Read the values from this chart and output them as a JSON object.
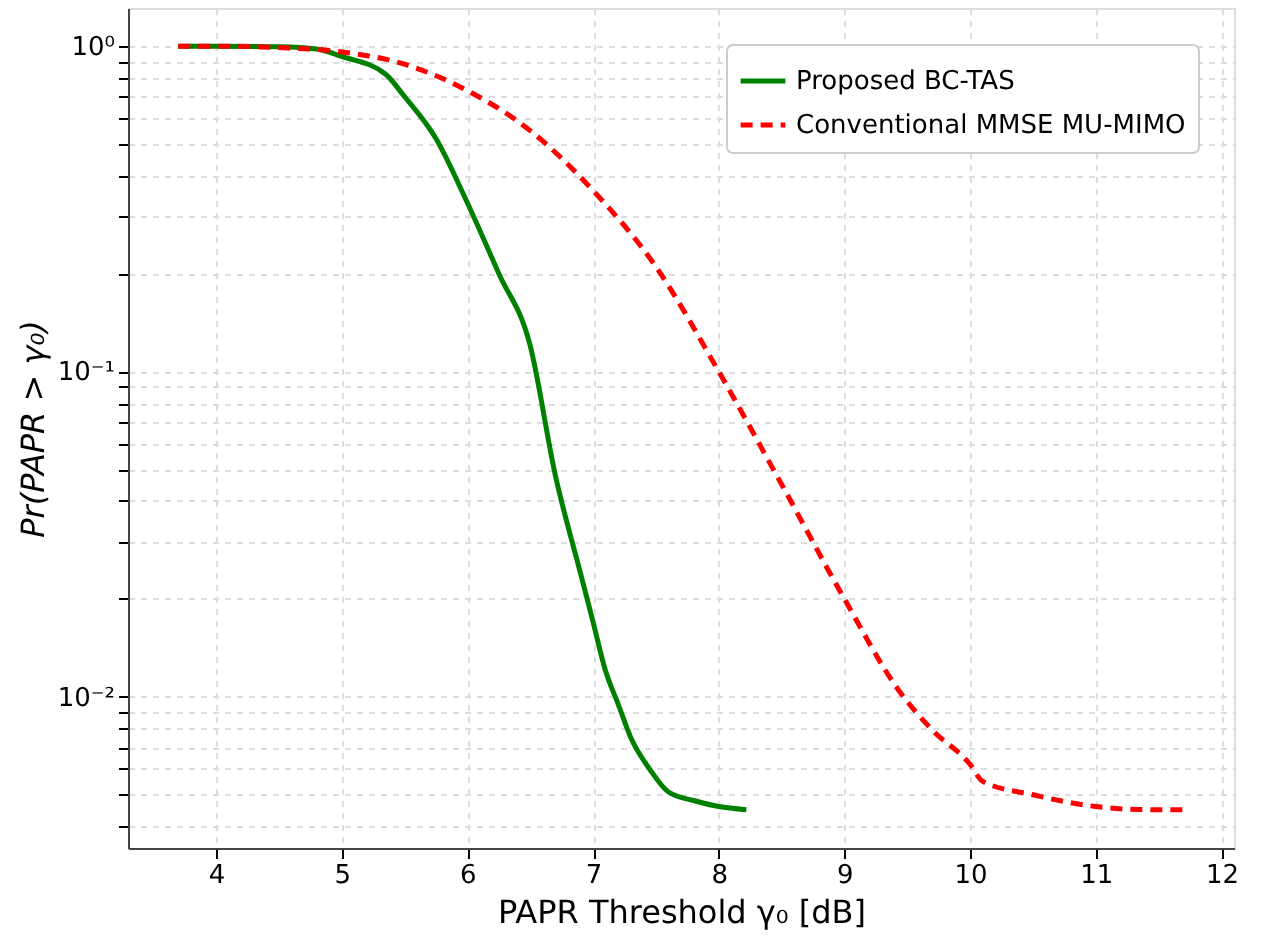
{
  "chart_data": {
    "type": "line",
    "xlabel": "PAPR Threshold γ₀ [dB]",
    "ylabel": "Pr(PAPR > γ₀)",
    "log": "y",
    "grid": true,
    "legend": "top right",
    "xlim": [
      3.3,
      12.1
    ],
    "xticks": [
      4,
      5,
      6,
      7,
      8,
      9,
      10,
      11,
      12
    ],
    "ylim": [
      0.00343,
      1.31
    ],
    "yticks": [
      {
        "value": 0.004,
        "label": null
      },
      {
        "value": 0.005,
        "label": null
      },
      {
        "value": 0.006,
        "label": null
      },
      {
        "value": 0.007,
        "label": null
      },
      {
        "value": 0.008,
        "label": null
      },
      {
        "value": 0.009,
        "label": null
      },
      {
        "value": 0.01,
        "label": "10⁻²"
      },
      {
        "value": 0.02,
        "label": null
      },
      {
        "value": 0.03,
        "label": null
      },
      {
        "value": 0.04,
        "label": null
      },
      {
        "value": 0.05,
        "label": null
      },
      {
        "value": 0.06,
        "label": null
      },
      {
        "value": 0.07,
        "label": null
      },
      {
        "value": 0.08,
        "label": null
      },
      {
        "value": 0.09,
        "label": null
      },
      {
        "value": 0.1,
        "label": "10⁻¹"
      },
      {
        "value": 0.2,
        "label": null
      },
      {
        "value": 0.3,
        "label": null
      },
      {
        "value": 0.4,
        "label": null
      },
      {
        "value": 0.5,
        "label": null
      },
      {
        "value": 0.6,
        "label": null
      },
      {
        "value": 0.7,
        "label": null
      },
      {
        "value": 0.8,
        "label": null
      },
      {
        "value": 0.9,
        "label": null
      },
      {
        "value": 1,
        "label": "10⁰"
      }
    ],
    "series": [
      {
        "name": "Proposed BC-TAS",
        "color": "#008000",
        "line_style": "solid",
        "x": [
          3.7,
          4.0,
          4.5,
          4.8,
          5.0,
          5.35,
          5.5,
          5.75,
          6.0,
          6.25,
          6.5,
          6.7,
          6.9,
          7.0,
          7.1,
          7.2,
          7.3,
          7.45,
          7.6,
          7.8,
          8.0,
          8.22
        ],
        "values": [
          1.0,
          1.0,
          0.995,
          0.98,
          0.93,
          0.82,
          0.7,
          0.52,
          0.33,
          0.2,
          0.12,
          0.048,
          0.024,
          0.017,
          0.012,
          0.0095,
          0.0075,
          0.006,
          0.0051,
          0.0048,
          0.0046,
          0.0045
        ]
      },
      {
        "name": "Conventional MMSE MU-MIMO",
        "color": "#ff0000",
        "line_style": "dashed",
        "x": [
          3.7,
          4.0,
          4.5,
          5.0,
          5.5,
          6.0,
          6.5,
          7.0,
          7.5,
          8.0,
          8.5,
          9.0,
          9.43,
          9.7,
          10.0,
          10.1,
          10.5,
          11.0,
          11.4,
          11.7
        ],
        "values": [
          1.0,
          1.0,
          0.99,
          0.96,
          0.88,
          0.73,
          0.55,
          0.36,
          0.21,
          0.1,
          0.045,
          0.02,
          0.0105,
          0.0079,
          0.0062,
          0.0055,
          0.005,
          0.0046,
          0.0045,
          0.0045
        ]
      }
    ]
  }
}
